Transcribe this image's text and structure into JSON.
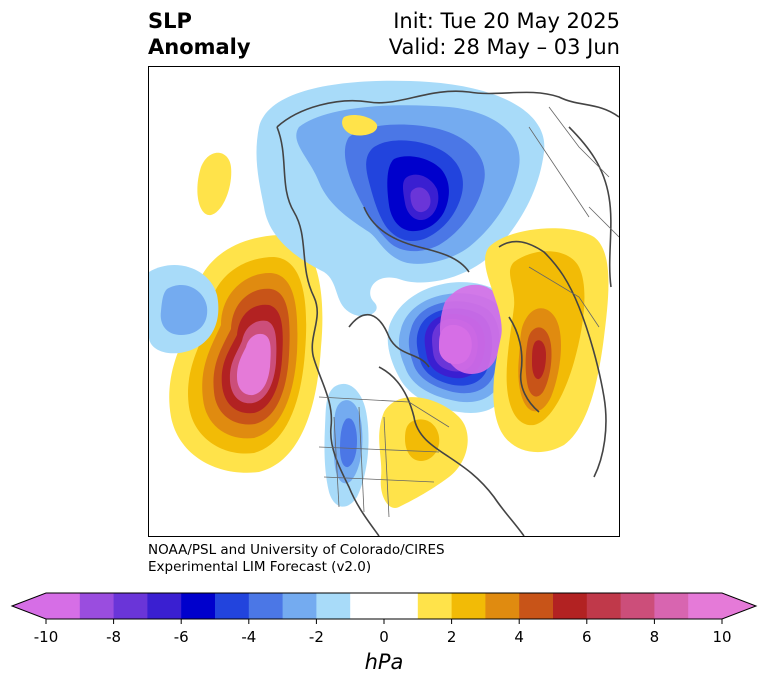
{
  "title": {
    "left_line1": "SLP",
    "left_line2": "Anomaly",
    "right_line1": "Init: Tue 20 May 2025",
    "right_line2": "Valid: 28 May – 03 Jun"
  },
  "credit": {
    "line1": "NOAA/PSL and University of Colorado/CIRES",
    "line2": "Experimental LIM Forecast (v2.0)"
  },
  "colorbar": {
    "unit": "hPa",
    "ticks": [
      "-10",
      "-8",
      "-6",
      "-4",
      "-2",
      "0",
      "2",
      "4",
      "6",
      "8",
      "10"
    ],
    "colors": [
      "#d66ee6",
      "#9a4ddf",
      "#6a35d8",
      "#3a1fd1",
      "#0000cc",
      "#2244dd",
      "#4b77e6",
      "#74abf0",
      "#a8dbf9",
      "#ffffff",
      "#ffffff",
      "#ffe34a",
      "#f2bb06",
      "#e08b10",
      "#c85418",
      "#b22222",
      "#c0394a",
      "#cc4e7a",
      "#d865b0",
      "#e57ad8"
    ],
    "extend_low": "#d66ee6",
    "extend_high": "#e57ad8"
  },
  "map_features": {
    "positive_centers": [
      "North Pacific",
      "North Atlantic east",
      "Eastern North America"
    ],
    "negative_centers": [
      "Arctic",
      "North Atlantic west",
      "Western United States"
    ]
  }
}
